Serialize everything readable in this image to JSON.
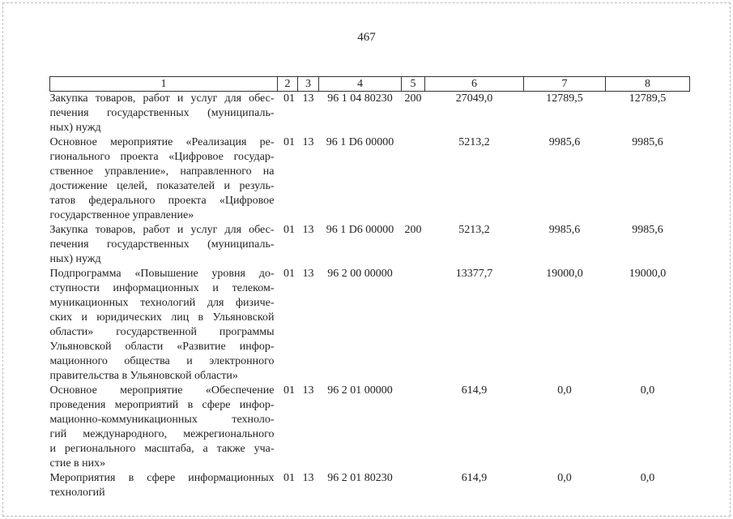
{
  "page_number": "467",
  "headers": [
    "1",
    "2",
    "3",
    "4",
    "5",
    "6",
    "7",
    "8"
  ],
  "rows": [
    {
      "lines": [
        "Закупка товаров, работ и услуг для обес-",
        "печения государственных (муниципаль-",
        "ных) нужд"
      ],
      "c2": "01",
      "c3": "13",
      "c4": "96 1 04 80230",
      "c5": "200",
      "c6": "27049,0",
      "c7": "12789,5",
      "c8": "12789,5"
    },
    {
      "lines": [
        "Основное мероприятие «Реализация ре-",
        "гионального проекта «Цифровое государ-",
        "ственное управление», направленного на",
        "достижение целей, показателей и резуль-",
        "татов федерального проекта «Цифровое",
        "государственное управление»"
      ],
      "c2": "01",
      "c3": "13",
      "c4": "96 1 D6 00000",
      "c5": "",
      "c6": "5213,2",
      "c7": "9985,6",
      "c8": "9985,6"
    },
    {
      "lines": [
        "Закупка товаров, работ и услуг для обес-",
        "печения государственных (муниципаль-",
        "ных) нужд"
      ],
      "c2": "01",
      "c3": "13",
      "c4": "96 1 D6 00000",
      "c5": "200",
      "c6": "5213,2",
      "c7": "9985,6",
      "c8": "9985,6"
    },
    {
      "lines": [
        "Подпрограмма «Повышение уровня до-",
        "ступности информационных и телеком-",
        "муникационных технологий для физиче-",
        "ских и юридических лиц в Ульяновской",
        "области» государственной программы",
        "Ульяновской области «Развитие инфор-",
        "мационного общества и электронного",
        "правительства в Ульяновской области»"
      ],
      "c2": "01",
      "c3": "13",
      "c4": "96 2 00 00000",
      "c5": "",
      "c6": "13377,7",
      "c7": "19000,0",
      "c8": "19000,0"
    },
    {
      "lines": [
        "Основное мероприятие «Обеспечение",
        "проведения мероприятий в сфере инфор-",
        "мационно-коммуникационных техноло-",
        "гий международного, межрегионального",
        "и регионального масштаба, а также уча-",
        "стие в них»"
      ],
      "c2": "01",
      "c3": "13",
      "c4": "96 2 01 00000",
      "c5": "",
      "c6": "614,9",
      "c7": "0,0",
      "c8": "0,0"
    },
    {
      "lines": [
        "Мероприятия в сфере информационных",
        "технологий"
      ],
      "c2": "01",
      "c3": "13",
      "c4": "96 2 01 80230",
      "c5": "",
      "c6": "614,9",
      "c7": "0,0",
      "c8": "0,0"
    }
  ]
}
